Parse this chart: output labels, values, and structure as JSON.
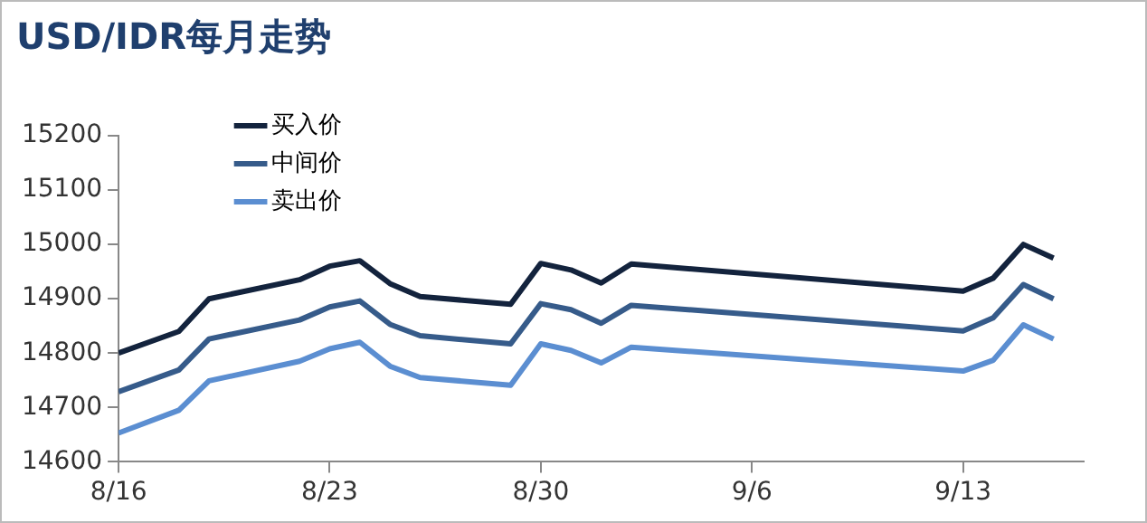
{
  "chart_data": {
    "type": "line",
    "title": "USD/IDR每月走势",
    "x": [
      "--08-16",
      "--08-18",
      "--08-19",
      "--08-22",
      "--08-23",
      "--08-24",
      "--08-25",
      "--08-26",
      "--08-29",
      "--08-30",
      "--08-31",
      "--09-01",
      "--09-02",
      "--09-13",
      "--09-14",
      "--09-15",
      "--09-16"
    ],
    "series": [
      {
        "name": "买入价",
        "color": "#13233d",
        "values": [
          14800,
          14840,
          14900,
          14935,
          14960,
          14970,
          14928,
          14904,
          14890,
          14965,
          14953,
          14929,
          14964,
          14914,
          14938,
          15000,
          14975
        ]
      },
      {
        "name": "中间价",
        "color": "#365b8a",
        "values": [
          14729,
          14769,
          14826,
          14861,
          14885,
          14896,
          14853,
          14832,
          14817,
          14891,
          14880,
          14855,
          14888,
          14841,
          14865,
          14926,
          14900
        ]
      },
      {
        "name": "卖出价",
        "color": "#5b8ed1",
        "values": [
          14653,
          14695,
          14749,
          14785,
          14808,
          14820,
          14776,
          14755,
          14741,
          14817,
          14805,
          14782,
          14811,
          14767,
          14787,
          14852,
          14826
        ]
      }
    ],
    "xlim": [
      "--08-16",
      "--09-17"
    ],
    "xticks": [
      {
        "value": "--08-16",
        "label": "8/16"
      },
      {
        "value": "--08-23",
        "label": "8/23"
      },
      {
        "value": "--08-30",
        "label": "8/30"
      },
      {
        "value": "--09-06",
        "label": "9/6"
      },
      {
        "value": "--09-13",
        "label": "9/13"
      }
    ],
    "ylim": [
      14600,
      15200
    ],
    "yticks": [
      14600,
      14700,
      14800,
      14900,
      15000,
      15100,
      15200
    ],
    "grid": false,
    "legend": "top left",
    "marker": "none",
    "line_style": "solid"
  }
}
